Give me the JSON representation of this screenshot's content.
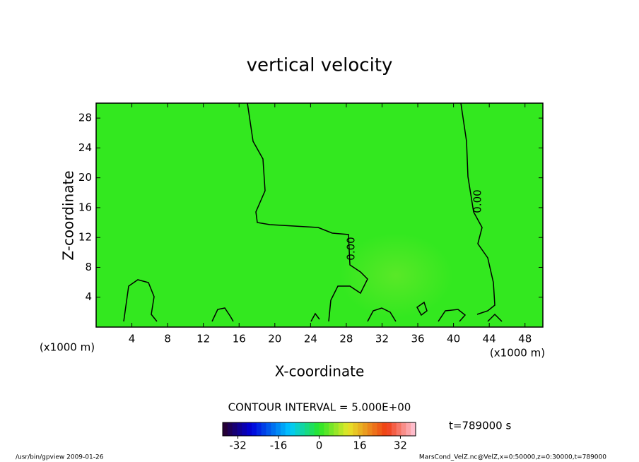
{
  "chart_data": {
    "type": "contour",
    "title": "vertical velocity",
    "x_label": "X-coordinate",
    "y_label": "Z-coordinate",
    "x_unit": "(x1000 m)",
    "xlim": [
      0,
      50
    ],
    "xticks": [
      4,
      8,
      12,
      16,
      20,
      24,
      28,
      32,
      36,
      40,
      44,
      48
    ],
    "ylim": [
      0,
      30
    ],
    "yticks": [
      4,
      8,
      12,
      16,
      20,
      24,
      28
    ],
    "contour_levels": [
      {
        "value": 0,
        "label": "0.00"
      }
    ],
    "contour_interval_text": "CONTOUR INTERVAL = 5.000E+00",
    "time_text": "t=789000 s",
    "colorbar_lim": [
      -38,
      38
    ],
    "colorbar_ticks": [
      -32,
      -16,
      0,
      16,
      32
    ],
    "fill_color": "#33e81f",
    "footer_left": "/usr/bin/gpview  2009-01-26",
    "footer_right": "MarsCond_VelZ.nc@VelZ,x=0:50000,z=0:30000,t=789000"
  }
}
